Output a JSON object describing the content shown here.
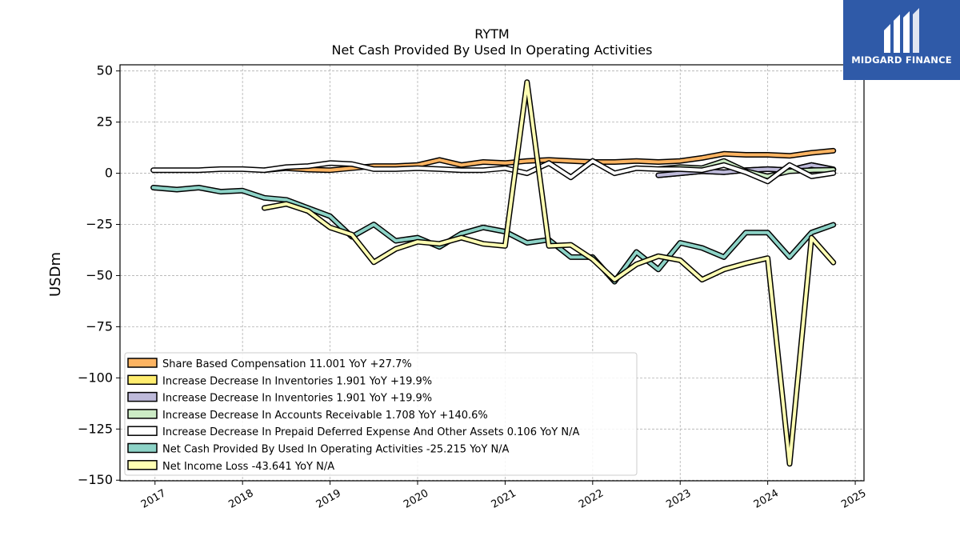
{
  "brand": {
    "name": "MIDGARD FINANCE",
    "bg_color": "#2f5aa8"
  },
  "chart_data": {
    "type": "line",
    "title": "RYTM",
    "subtitle": "Net Cash Provided By Used In Operating Activities",
    "ylabel": "USDm",
    "xlabel": "",
    "ylim": [
      -150,
      53
    ],
    "xlim": [
      2016.6,
      2025.1
    ],
    "yticks": [
      50,
      25,
      0,
      -25,
      -50,
      -75,
      -100,
      -125,
      -150
    ],
    "ytick_labels": [
      "50",
      "25",
      "0",
      "−25",
      "−50",
      "−75",
      "−100",
      "−125",
      "−150"
    ],
    "xticks": [
      2017,
      2018,
      2019,
      2020,
      2021,
      2022,
      2023,
      2024,
      2025
    ],
    "xtick_labels": [
      "2017",
      "2018",
      "2019",
      "2020",
      "2021",
      "2022",
      "2023",
      "2024",
      "2025"
    ],
    "grid": true,
    "legend_position": "lower-left",
    "series": [
      {
        "name": "Share Based Compensation  11.001 YoY +27.7%",
        "color": "#fdb462",
        "points": [
          [
            2018.25,
            1.5
          ],
          [
            2018.5,
            2.5
          ],
          [
            2018.75,
            1.8
          ],
          [
            2019.0,
            1.5
          ],
          [
            2019.25,
            2.5
          ],
          [
            2019.5,
            3.5
          ],
          [
            2019.75,
            3.5
          ],
          [
            2020.0,
            4.0
          ],
          [
            2020.25,
            6.5
          ],
          [
            2020.5,
            4.0
          ],
          [
            2020.75,
            5.5
          ],
          [
            2021.0,
            5.0
          ],
          [
            2021.25,
            6.0
          ],
          [
            2021.5,
            6.5
          ],
          [
            2021.75,
            6.0
          ],
          [
            2022.0,
            5.5
          ],
          [
            2022.25,
            5.5
          ],
          [
            2022.5,
            6.0
          ],
          [
            2022.75,
            5.5
          ],
          [
            2023.0,
            6.0
          ],
          [
            2023.25,
            7.5
          ],
          [
            2023.5,
            9.5
          ],
          [
            2023.75,
            9.0
          ],
          [
            2024.0,
            9.0
          ],
          [
            2024.25,
            8.5
          ],
          [
            2024.5,
            10.0
          ],
          [
            2024.75,
            11.0
          ]
        ]
      },
      {
        "name": "Increase Decrease In Inventories  1.901 YoY +19.9%",
        "color": "#ffed6f",
        "points": [
          [
            2022.75,
            -1.0
          ],
          [
            2023.0,
            0.0
          ],
          [
            2023.25,
            1.0
          ],
          [
            2023.5,
            0.5
          ],
          [
            2023.75,
            1.5
          ],
          [
            2024.0,
            2.0
          ],
          [
            2024.25,
            1.5
          ],
          [
            2024.5,
            4.0
          ],
          [
            2024.75,
            1.9
          ]
        ]
      },
      {
        "name": "Increase Decrease In Inventories  1.901 YoY +19.9%",
        "color": "#bebada",
        "points": [
          [
            2022.75,
            -1.0
          ],
          [
            2023.0,
            0.0
          ],
          [
            2023.25,
            1.0
          ],
          [
            2023.5,
            0.5
          ],
          [
            2023.75,
            1.5
          ],
          [
            2024.0,
            2.0
          ],
          [
            2024.25,
            1.5
          ],
          [
            2024.5,
            4.0
          ],
          [
            2024.75,
            1.9
          ]
        ]
      },
      {
        "name": "Increase Decrease In Accounts Receivable  1.708 YoY +140.6%",
        "color": "#ccebc5",
        "points": [
          [
            2022.75,
            2.0
          ],
          [
            2023.0,
            3.0
          ],
          [
            2023.25,
            2.5
          ],
          [
            2023.5,
            6.0
          ],
          [
            2023.75,
            1.0
          ],
          [
            2024.0,
            -1.5
          ],
          [
            2024.25,
            1.0
          ],
          [
            2024.5,
            1.5
          ],
          [
            2024.75,
            1.7
          ]
        ]
      },
      {
        "name": "Increase Decrease In Prepaid Deferred Expense And Other Assets  0.106 YoY N/A",
        "color": "#ffffff",
        "points": [
          [
            2016.98,
            1.5
          ],
          [
            2017.25,
            1.5
          ],
          [
            2017.5,
            1.5
          ],
          [
            2017.75,
            2.0
          ],
          [
            2018.0,
            2.0
          ],
          [
            2018.25,
            1.5
          ],
          [
            2018.5,
            3.0
          ],
          [
            2018.75,
            3.5
          ],
          [
            2019.0,
            5.0
          ],
          [
            2019.25,
            4.5
          ],
          [
            2019.5,
            2.0
          ],
          [
            2019.75,
            2.0
          ],
          [
            2020.0,
            2.5
          ],
          [
            2020.25,
            2.0
          ],
          [
            2020.5,
            1.5
          ],
          [
            2020.75,
            1.5
          ],
          [
            2021.0,
            2.5
          ],
          [
            2021.25,
            0.0
          ],
          [
            2021.5,
            5.0
          ],
          [
            2021.75,
            -2.0
          ],
          [
            2022.0,
            6.0
          ],
          [
            2022.25,
            0.0
          ],
          [
            2022.5,
            2.5
          ],
          [
            2022.75,
            2.0
          ],
          [
            2023.0,
            2.0
          ],
          [
            2023.25,
            1.5
          ],
          [
            2023.5,
            4.0
          ],
          [
            2023.75,
            0.5
          ],
          [
            2024.0,
            -4.0
          ],
          [
            2024.25,
            4.0
          ],
          [
            2024.5,
            -1.5
          ],
          [
            2024.75,
            0.1
          ]
        ]
      },
      {
        "name": "Net Cash Provided By Used In Operating Activities  -25.215 YoY N/A",
        "color": "#8dd3c7",
        "points": [
          [
            2016.98,
            -7.0
          ],
          [
            2017.25,
            -8.0
          ],
          [
            2017.5,
            -7.0
          ],
          [
            2017.75,
            -9.0
          ],
          [
            2018.0,
            -8.5
          ],
          [
            2018.25,
            -12.0
          ],
          [
            2018.5,
            -13.0
          ],
          [
            2018.75,
            -17.0
          ],
          [
            2019.0,
            -21.0
          ],
          [
            2019.25,
            -31.0
          ],
          [
            2019.5,
            -25.0
          ],
          [
            2019.75,
            -33.0
          ],
          [
            2020.0,
            -31.5
          ],
          [
            2020.25,
            -36.0
          ],
          [
            2020.5,
            -29.5
          ],
          [
            2020.75,
            -26.5
          ],
          [
            2021.0,
            -28.5
          ],
          [
            2021.25,
            -34.0
          ],
          [
            2021.5,
            -32.5
          ],
          [
            2021.75,
            -41.0
          ],
          [
            2022.0,
            -41.0
          ],
          [
            2022.25,
            -53.0
          ],
          [
            2022.5,
            -38.5
          ],
          [
            2022.75,
            -47.0
          ],
          [
            2023.0,
            -34.0
          ],
          [
            2023.25,
            -36.5
          ],
          [
            2023.5,
            -41.0
          ],
          [
            2023.75,
            -29.0
          ],
          [
            2024.0,
            -29.0
          ],
          [
            2024.25,
            -41.0
          ],
          [
            2024.5,
            -29.0
          ],
          [
            2024.75,
            -25.2
          ]
        ]
      },
      {
        "name": "Net Income Loss  -43.641 YoY N/A",
        "color": "#ffffb3",
        "points": [
          [
            2018.25,
            -17.0
          ],
          [
            2018.5,
            -15.0
          ],
          [
            2018.75,
            -18.5
          ],
          [
            2019.0,
            -26.5
          ],
          [
            2019.25,
            -30.0
          ],
          [
            2019.5,
            -43.5
          ],
          [
            2019.75,
            -37.0
          ],
          [
            2020.0,
            -33.5
          ],
          [
            2020.25,
            -34.5
          ],
          [
            2020.5,
            -31.5
          ],
          [
            2020.75,
            -34.5
          ],
          [
            2021.0,
            -35.5
          ],
          [
            2021.25,
            44.5
          ],
          [
            2021.5,
            -35.5
          ],
          [
            2021.75,
            -35.0
          ],
          [
            2022.0,
            -42.0
          ],
          [
            2022.25,
            -52.0
          ],
          [
            2022.5,
            -44.5
          ],
          [
            2022.75,
            -40.5
          ],
          [
            2023.0,
            -42.5
          ],
          [
            2023.25,
            -52.0
          ],
          [
            2023.5,
            -47.0
          ],
          [
            2023.75,
            -44.0
          ],
          [
            2024.0,
            -41.5
          ],
          [
            2024.25,
            -142.0
          ],
          [
            2024.5,
            -31.5
          ],
          [
            2024.75,
            -43.6
          ]
        ]
      }
    ]
  }
}
